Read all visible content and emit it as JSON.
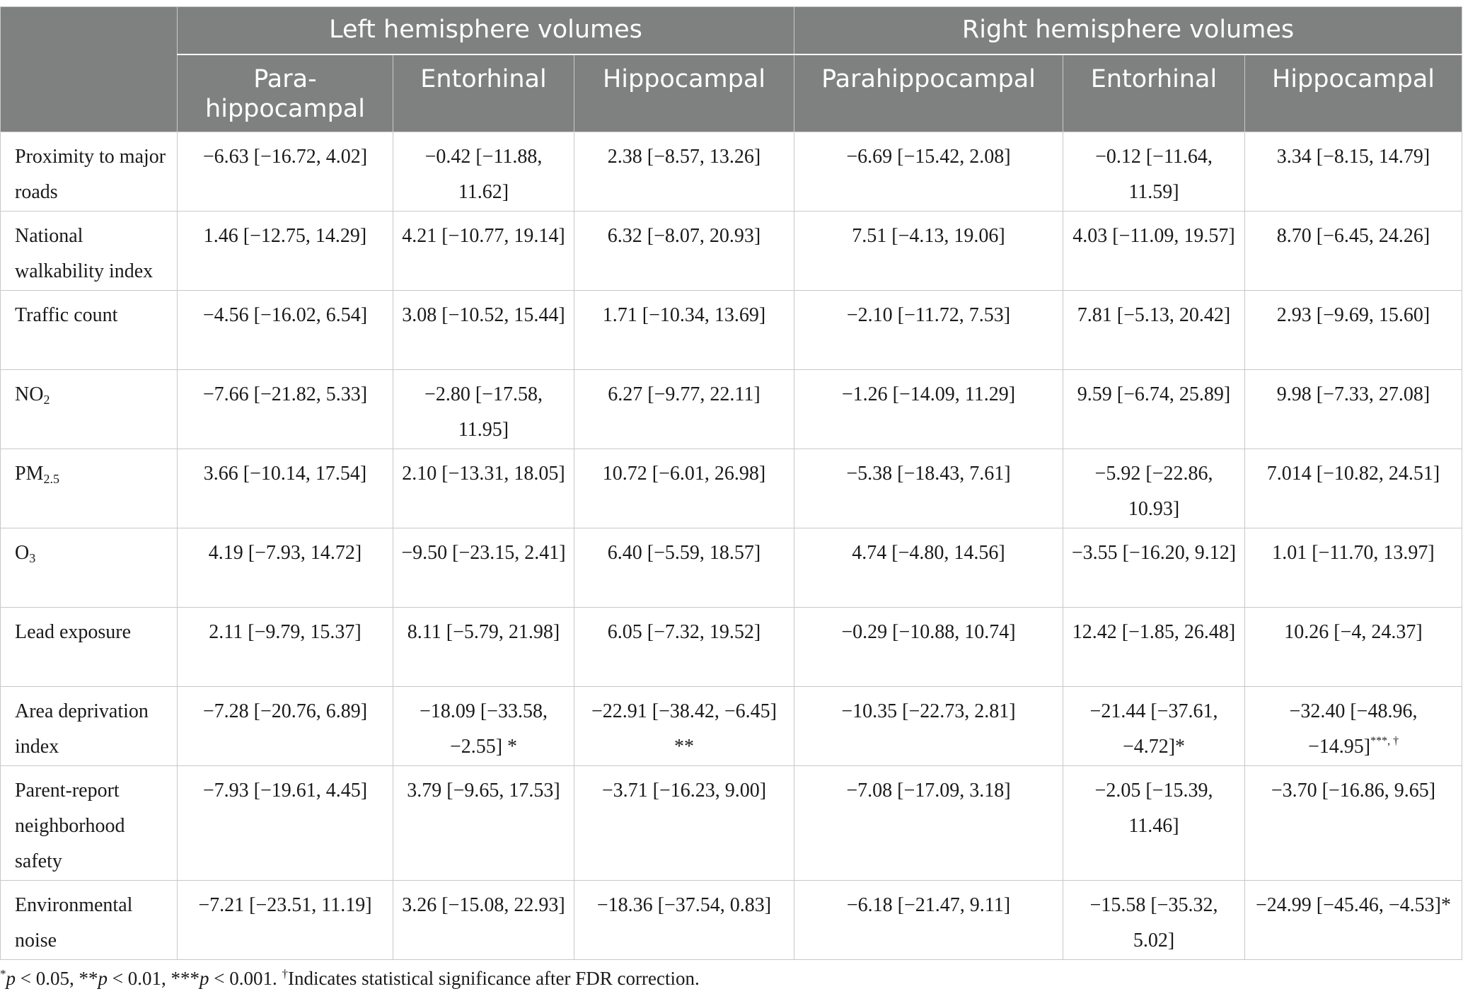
{
  "header": {
    "groups": [
      "Left hemisphere volumes",
      "Right hemisphere volumes"
    ],
    "columns": [
      "Para-\nhippocampal",
      "Entorhinal",
      "Hippocampal",
      "Parahippocampal",
      "Entorhinal",
      "Hippocampal"
    ]
  },
  "rows": [
    {
      "label": "Proximity to major roads",
      "cells": [
        "−6.63 [−16.72, 4.02]",
        "−0.42 [−11.88, 11.62]",
        "2.38 [−8.57, 13.26]",
        "−6.69 [−15.42, 2.08]",
        "−0.12 [−11.64, 11.59]",
        "3.34 [−8.15, 14.79]"
      ]
    },
    {
      "label": "National walkability index",
      "cells": [
        "1.46 [−12.75, 14.29]",
        "4.21 [−10.77, 19.14]",
        "6.32 [−8.07, 20.93]",
        "7.51 [−4.13, 19.06]",
        "4.03 [−11.09, 19.57]",
        "8.70 [−6.45, 24.26]"
      ]
    },
    {
      "label": "Traffic count",
      "cells": [
        "−4.56 [−16.02, 6.54]",
        "3.08 [−10.52, 15.44]",
        "1.71 [−10.34, 13.69]",
        "−2.10 [−11.72, 7.53]",
        "7.81 [−5.13, 20.42]",
        "2.93 [−9.69, 15.60]"
      ]
    },
    {
      "label": "NO",
      "label_sub": "2",
      "cells": [
        "−7.66 [−21.82, 5.33]",
        "−2.80 [−17.58, 11.95]",
        "6.27 [−9.77, 22.11]",
        "−1.26 [−14.09, 11.29]",
        "9.59 [−6.74, 25.89]",
        "9.98 [−7.33, 27.08]"
      ]
    },
    {
      "label": "PM",
      "label_sub": "2.5",
      "cells": [
        "3.66 [−10.14, 17.54]",
        "2.10 [−13.31, 18.05]",
        "10.72 [−6.01, 26.98]",
        "−5.38 [−18.43, 7.61]",
        "−5.92 [−22.86, 10.93]",
        "7.014 [−10.82, 24.51]"
      ]
    },
    {
      "label": "O",
      "label_sub": "3",
      "cells": [
        "4.19 [−7.93, 14.72]",
        "−9.50 [−23.15, 2.41]",
        "6.40 [−5.59, 18.57]",
        "4.74 [−4.80, 14.56]",
        "−3.55 [−16.20, 9.12]",
        "1.01 [−11.70, 13.97]"
      ]
    },
    {
      "label": "Lead exposure",
      "cells": [
        "2.11 [−9.79, 15.37]",
        "8.11 [−5.79, 21.98]",
        "6.05 [−7.32, 19.52]",
        "−0.29 [−10.88, 10.74]",
        "12.42 [−1.85, 26.48]",
        "10.26 [−4, 24.37]"
      ]
    },
    {
      "label": "Area deprivation index",
      "cells": [
        "−7.28 [−20.76, 6.89]",
        "−18.09 [−33.58, −2.55] *",
        "−22.91 [−38.42, −6.45] **",
        "−10.35 [−22.73, 2.81]",
        "−21.44 [−37.61, −4.72]*",
        "−32.40 [−48.96, −14.95]"
      ],
      "last_cell_sup": "***, †"
    },
    {
      "label": "Parent-report neighborhood safety",
      "cells": [
        "−7.93 [−19.61, 4.45]",
        "3.79 [−9.65, 17.53]",
        "−3.71 [−16.23, 9.00]",
        "−7.08 [−17.09, 3.18]",
        "−2.05 [−15.39, 11.46]",
        "−3.70 [−16.86, 9.65]"
      ]
    },
    {
      "label": "Environmental noise",
      "cells": [
        "−7.21 [−23.51, 11.19]",
        "3.26 [−15.08, 22.93]",
        "−18.36 [−37.54, 0.83]",
        "−6.18 [−21.47, 9.11]",
        "−15.58 [−35.32, 5.02]",
        "−24.99 [−45.46, −4.53]*"
      ]
    }
  ],
  "footnote": {
    "s1": "*",
    "p1": "p",
    "t1": " < 0.05, **",
    "p2": "p",
    "t2": " < 0.01, ***",
    "p3": "p",
    "t3": " < 0.001. ",
    "dagger": "†",
    "t4": "Indicates statistical significance after FDR correction."
  }
}
